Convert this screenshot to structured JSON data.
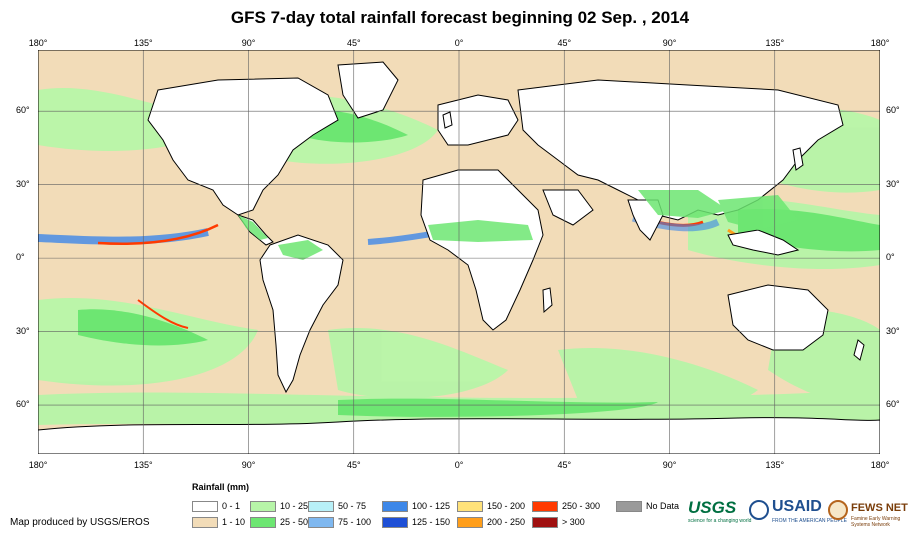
{
  "title": "GFS 7-day total rainfall forecast beginning 02 Sep. , 2014",
  "axes": {
    "lon_ticks": [
      {
        "value": -180,
        "label": "180°"
      },
      {
        "value": -135,
        "label": "135°"
      },
      {
        "value": -90,
        "label": "90°"
      },
      {
        "value": -45,
        "label": "45°"
      },
      {
        "value": 0,
        "label": "0°"
      },
      {
        "value": 45,
        "label": "45°"
      },
      {
        "value": 90,
        "label": "90°"
      },
      {
        "value": 135,
        "label": "135°"
      },
      {
        "value": 180,
        "label": "180°"
      }
    ],
    "lat_ticks": [
      {
        "value": 60,
        "label": "60°"
      },
      {
        "value": 30,
        "label": "30°"
      },
      {
        "value": 0,
        "label": "0°"
      },
      {
        "value": -30,
        "label": "30°"
      },
      {
        "value": -60,
        "label": "60°"
      }
    ],
    "lon_range": [
      -180,
      180
    ],
    "lat_range": [
      -80,
      85
    ],
    "grid": true
  },
  "legend": {
    "title": "Rainfall (mm)",
    "items": [
      {
        "label": "0 - 1",
        "color": "#ffffff"
      },
      {
        "label": "1 - 10",
        "color": "#f2dcb8"
      },
      {
        "label": "10 - 25",
        "color": "#b7f5a8"
      },
      {
        "label": "25 - 50",
        "color": "#6de672"
      },
      {
        "label": "50 - 75",
        "color": "#b8f0f8"
      },
      {
        "label": "75 - 100",
        "color": "#7fb8f0"
      },
      {
        "label": "100 - 125",
        "color": "#3d87e8"
      },
      {
        "label": "125 - 150",
        "color": "#1e4fd6"
      },
      {
        "label": "150 - 200",
        "color": "#ffe27a"
      },
      {
        "label": "200 - 250",
        "color": "#ff9e1a"
      },
      {
        "label": "250 - 300",
        "color": "#ff3a00"
      },
      {
        "label": "> 300",
        "color": "#a01010"
      },
      {
        "label": "No Data",
        "color": "#9a9a9a"
      }
    ]
  },
  "credit": "Map produced by USGS/EROS",
  "logos": {
    "usgs": "USGS",
    "usgs_tagline": "science for a changing world",
    "usaid": "USAID",
    "usaid_tagline": "FROM THE AMERICAN PEOPLE",
    "fews": "FEWS NET",
    "fews_tagline": "Famine Early Warning Systems Network"
  },
  "colors": {
    "ocean_light": "#f2dcb8",
    "ocean_wet": "#b7f5a8",
    "land_dry": "#ffffff",
    "coast": "#000000",
    "grid": "#606060"
  }
}
